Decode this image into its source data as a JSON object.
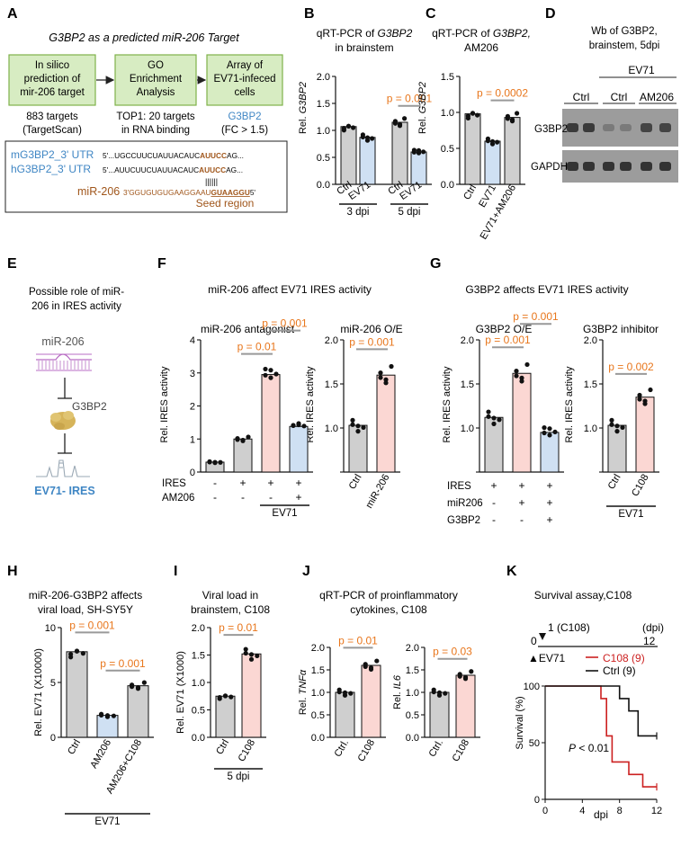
{
  "colors": {
    "ctrl": "#cfcfcf",
    "ev71": "#cfe0f3",
    "treat": "#fbd7d3",
    "pval": "#e8761c",
    "flow_fill": "#d7ecc2",
    "flow_stroke": "#7fb24a",
    "blue_text": "#3f86c4",
    "brown": "#a0561b",
    "red": "#cc2020"
  },
  "panelA": {
    "letter": "A",
    "title": "G3BP2 as a predicted miR-206 Target",
    "boxes": [
      {
        "lines": [
          "In silico",
          "prediction of",
          "mir-206 target"
        ]
      },
      {
        "lines": [
          "GO",
          "Enrichment",
          "Analysis"
        ]
      },
      {
        "lines": [
          "Array of",
          "EV71-infeced",
          "cells"
        ]
      }
    ],
    "notes": [
      {
        "lines": [
          "883 targets",
          "(TargetScan)"
        ]
      },
      {
        "lines": [
          "TOP1: 20 targets",
          "in RNA binding"
        ]
      },
      {
        "lines": [
          "G3BP2",
          "(FC > 1.5)"
        ]
      }
    ],
    "seq": {
      "m_label": "mG3BP2_3' UTR",
      "h_label": "hG3BP2_3' UTR",
      "m_seq_a": "5'...UGCCUUCUAUUACAUC",
      "m_seq_b": "AUUCC",
      "m_seq_c": "AG...",
      "h_seq_a": "5'...AUUCUUCUAUUACAUC",
      "h_seq_b": "AUUCC",
      "h_seq_c": "AG...",
      "pairing": "||||||",
      "mir_label": "miR-206",
      "mir_seq_a": "3'GGUGUGUGAAGGAAU",
      "mir_seq_b": "GUAAGGU",
      "mir_seq_c": "5'",
      "seed_label": "Seed region"
    }
  },
  "panelB": {
    "letter": "B",
    "title_a": "qRT-PCR of",
    "title_gene": "G3BP2",
    "title_b": "in brainstem",
    "ylabel_a": "Rel.",
    "ylabel_gene": "G3BP2"
  },
  "panelC": {
    "letter": "C",
    "title_a": "qRT-PCR of",
    "title_gene": "G3BP2,",
    "title_b": "AM206",
    "ylabel_a": "Rel.",
    "ylabel_gene": "G3BP2"
  },
  "panelD": {
    "letter": "D",
    "title": [
      "Wb of G3BP2,",
      "brainstem, 5dpi"
    ],
    "ev71": "EV71",
    "ctrl_a": "Ctrl",
    "ctrl_b": "Ctrl",
    "am206": "AM206",
    "band1": "G3BP2",
    "band2": "GAPDH"
  },
  "panelE": {
    "letter": "E",
    "title": [
      "Possible role of  miR-",
      "206 in IRES activity"
    ],
    "mir": "miR-206",
    "g3bp2": "G3BP2",
    "ires": "EV71- IRES"
  },
  "panelF": {
    "letter": "F",
    "title": "miR-206 affect EV71 IRES activity",
    "sub1": "miR-206 antagonist",
    "sub2": "miR-206 O/E",
    "ylabel": "Rel. IRES activity"
  },
  "panelG": {
    "letter": "G",
    "title": "G3BP2  affects EV71 IRES activity",
    "sub1": "G3BP2 O/E",
    "sub2": "G3BP2 inhibitor",
    "ylabel": "Rel. IRES activity"
  },
  "panelH": {
    "letter": "H",
    "title": [
      "miR-206-G3BP2 affects",
      "viral load, SH-SY5Y"
    ],
    "ylabel": "Rel. EV71 (X10000)"
  },
  "panelI": {
    "letter": "I",
    "title": [
      "Viral load in",
      "brainstem, C108"
    ],
    "ylabel": "Rel. EV71 (X1000)"
  },
  "panelJ": {
    "letter": "J",
    "title": [
      "qRT-PCR of  proinflammatory",
      "cytokines, C108"
    ],
    "ylabel1_a": "Rel.",
    "ylabel1_gene": "TNFα",
    "ylabel2_a": "Rel.",
    "ylabel2_gene": "IL6"
  },
  "panelK": {
    "letter": "K",
    "title": "Survival assay,C108",
    "day1": "1 (C108)",
    "dpi": "(dpi)",
    "zero": "0",
    "twelve": "12",
    "ev71": "▲EV71",
    "ylabel": "Survival (%)",
    "xlabel": "dpi",
    "pvalue_p": "P",
    "pvalue_rest": " < 0.01"
  },
  "chart_data": [
    {
      "id": "B",
      "type": "bar",
      "categories": [
        "Ctrl",
        "EV71",
        "Ctrl",
        "EV71"
      ],
      "groups": [
        {
          "label": "3 dpi",
          "span": [
            0,
            1
          ]
        },
        {
          "label": "5 dpi",
          "span": [
            2,
            3
          ]
        }
      ],
      "values": [
        1.07,
        0.87,
        1.15,
        0.6
      ],
      "ylim": [
        0,
        2.0
      ],
      "yticks": [
        0.0,
        0.5,
        1.0,
        1.5,
        2.0
      ],
      "ytick_labels": [
        "0.0",
        "0.5",
        "1.0",
        "1.5",
        "2.0"
      ],
      "annotations": [
        {
          "text": "p = 0.001",
          "between": [
            2,
            3
          ]
        }
      ]
    },
    {
      "id": "C",
      "type": "bar",
      "categories": [
        "Ctrl",
        "EV71",
        "EV71+AM206"
      ],
      "values": [
        0.98,
        0.6,
        0.93
      ],
      "ylim": [
        0,
        1.5
      ],
      "yticks": [
        0.0,
        0.5,
        1.0,
        1.5
      ],
      "ytick_labels": [
        "0.0",
        "0.5",
        "1.0",
        "1.5"
      ],
      "annotations": [
        {
          "text": "p = 0.0002",
          "between": [
            1,
            2
          ]
        }
      ]
    },
    {
      "id": "F1",
      "type": "bar",
      "categories": [
        "",
        "",
        "",
        ""
      ],
      "rows": [
        {
          "label": "IRES",
          "signs": [
            "-",
            "+",
            "+",
            "+"
          ]
        },
        {
          "label": "AM206",
          "signs": [
            "-",
            "-",
            "-",
            "+"
          ]
        }
      ],
      "groups": [
        {
          "label": "EV71",
          "span": [
            2,
            3
          ]
        }
      ],
      "values": [
        0.3,
        1.0,
        2.95,
        1.38
      ],
      "ylim": [
        0,
        4
      ],
      "yticks": [
        0,
        1,
        2,
        3,
        4
      ],
      "ytick_labels": [
        "0",
        "1",
        "2",
        "3",
        "4"
      ],
      "annotations": [
        {
          "text": "p = 0.01",
          "between": [
            1,
            2
          ]
        },
        {
          "text": "p = 0.001",
          "between": [
            2,
            3
          ]
        }
      ]
    },
    {
      "id": "F2",
      "type": "bar",
      "categories": [
        "Ctrl",
        "miR-206"
      ],
      "values": [
        1.03,
        1.6
      ],
      "ylim": [
        0.5,
        2.0
      ],
      "yticks": [
        0.5,
        1.0,
        1.5,
        2.0
      ],
      "ytick_labels": [
        "",
        "1.0",
        "1.5",
        "2.0"
      ],
      "annotations": [
        {
          "text": "p = 0.001",
          "between": [
            0,
            1
          ]
        }
      ]
    },
    {
      "id": "G1",
      "type": "bar",
      "categories": [
        "",
        "",
        ""
      ],
      "rows": [
        {
          "label": "IRES",
          "signs": [
            "+",
            "+",
            "+"
          ]
        },
        {
          "label": "miR206",
          "signs": [
            "-",
            "+",
            "+"
          ]
        },
        {
          "label": "G3BP2",
          "signs": [
            "-",
            "-",
            "+"
          ]
        }
      ],
      "values": [
        1.12,
        1.62,
        0.95
      ],
      "ylim": [
        0.5,
        2.0
      ],
      "yticks": [
        0.5,
        1.0,
        1.5,
        2.0
      ],
      "ytick_labels": [
        "",
        "1.0",
        "1.5",
        "2.0"
      ],
      "annotations": [
        {
          "text": "p = 0.001",
          "between": [
            0,
            1
          ]
        },
        {
          "text": "p = 0.001",
          "between": [
            1,
            2
          ]
        }
      ]
    },
    {
      "id": "G2",
      "type": "bar",
      "categories": [
        "Ctrl",
        "C108"
      ],
      "groups": [
        {
          "label": "EV71",
          "span": [
            0,
            1
          ]
        }
      ],
      "values": [
        1.03,
        1.35
      ],
      "ylim": [
        0.5,
        2.0
      ],
      "yticks": [
        0.5,
        1.0,
        1.5,
        2.0
      ],
      "ytick_labels": [
        "",
        "1.0",
        "1.5",
        "2.0"
      ],
      "annotations": [
        {
          "text": "p = 0.002",
          "between": [
            0,
            1
          ]
        }
      ]
    },
    {
      "id": "H",
      "type": "bar",
      "categories": [
        "Ctrl",
        "AM206",
        "AM206+C108"
      ],
      "groups": [
        {
          "label": "EV71",
          "span": [
            0,
            2
          ]
        }
      ],
      "values": [
        7.8,
        2.0,
        4.7
      ],
      "ylim": [
        0,
        10
      ],
      "yticks": [
        0,
        5,
        10
      ],
      "ytick_labels": [
        "0",
        "5",
        "10"
      ],
      "annotations": [
        {
          "text": "p = 0.001",
          "between": [
            0,
            1
          ]
        },
        {
          "text": "p = 0.001",
          "between": [
            1,
            2
          ]
        }
      ]
    },
    {
      "id": "I",
      "type": "bar",
      "categories": [
        "Ctrl",
        "C108"
      ],
      "groups": [
        {
          "label": "5 dpi",
          "span": [
            0,
            1
          ]
        }
      ],
      "values": [
        0.75,
        1.52
      ],
      "ylim": [
        0,
        2.0
      ],
      "yticks": [
        0.0,
        0.5,
        1.0,
        1.5,
        2.0
      ],
      "ytick_labels": [
        "0.0",
        "0.5",
        "1.0",
        "1.5",
        "2.0"
      ],
      "annotations": [
        {
          "text": "p = 0.01",
          "between": [
            0,
            1
          ]
        }
      ]
    },
    {
      "id": "J1",
      "type": "bar",
      "categories": [
        "Ctrl.",
        "C108"
      ],
      "values": [
        1.0,
        1.6
      ],
      "ylim": [
        0,
        2.0
      ],
      "yticks": [
        0.0,
        0.5,
        1.0,
        1.5,
        2.0
      ],
      "ytick_labels": [
        "0.0",
        "0.5",
        "1.0",
        "1.5",
        "2.0"
      ],
      "annotations": [
        {
          "text": "p = 0.01",
          "between": [
            0,
            1
          ]
        }
      ]
    },
    {
      "id": "J2",
      "type": "bar",
      "categories": [
        "Ctrl.",
        "C108"
      ],
      "values": [
        1.0,
        1.38
      ],
      "ylim": [
        0,
        2.0
      ],
      "yticks": [
        0.0,
        0.5,
        1.0,
        1.5,
        2.0
      ],
      "ytick_labels": [
        "0.0",
        "0.5",
        "1.0",
        "1.5",
        "2.0"
      ],
      "annotations": [
        {
          "text": "p = 0.03",
          "between": [
            0,
            1
          ]
        }
      ]
    },
    {
      "id": "K",
      "type": "line",
      "title": "Survival assay,C108",
      "xlabel": "dpi",
      "ylabel": "Survival (%)",
      "xlim": [
        0,
        12
      ],
      "ylim": [
        0,
        100
      ],
      "xticks": [
        0,
        4,
        8,
        12
      ],
      "yticks": [
        0,
        50,
        100
      ],
      "series": [
        {
          "name": "C108 (9)",
          "color": "#cc2020",
          "steps": [
            [
              0,
              100
            ],
            [
              6,
              100
            ],
            [
              6,
              89
            ],
            [
              6.6,
              89
            ],
            [
              6.6,
              56
            ],
            [
              7.2,
              56
            ],
            [
              7.2,
              33
            ],
            [
              9,
              33
            ],
            [
              9,
              22
            ],
            [
              10.5,
              22
            ],
            [
              10.5,
              11
            ],
            [
              12,
              11
            ]
          ]
        },
        {
          "name": "Ctrl (9)",
          "color": "#111111",
          "steps": [
            [
              0,
              100
            ],
            [
              8,
              100
            ],
            [
              8,
              89
            ],
            [
              9,
              89
            ],
            [
              9,
              78
            ],
            [
              10,
              78
            ],
            [
              10,
              56
            ],
            [
              12,
              56
            ]
          ]
        }
      ]
    }
  ]
}
